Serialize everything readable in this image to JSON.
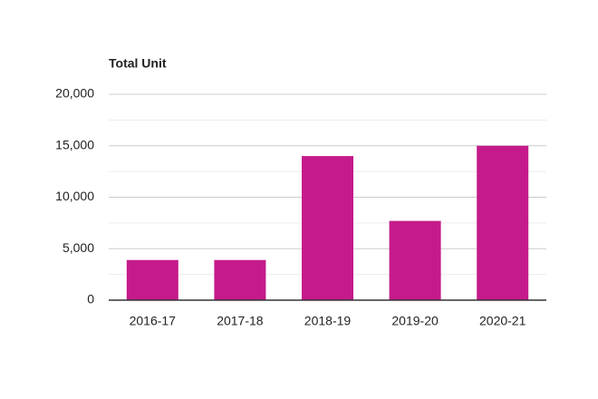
{
  "chart_data": {
    "type": "bar",
    "title": "Total Unit",
    "categories": [
      "2016-17",
      "2017-18",
      "2018-19",
      "2019-20",
      "2020-21"
    ],
    "values": [
      3900,
      3900,
      14000,
      7700,
      15000
    ],
    "color": "#c51b8a",
    "ylim": [
      0,
      20000
    ],
    "yticks": [
      0,
      {
        "value": 5000,
        "label": "5,000"
      },
      {
        "value": 10000,
        "label": "10,000"
      },
      {
        "value": 15000,
        "label": "15,000"
      },
      {
        "value": 20000,
        "label": "20,000"
      }
    ],
    "minor_yticks": [
      2500,
      7500,
      12500,
      17500
    ],
    "grid": true
  }
}
